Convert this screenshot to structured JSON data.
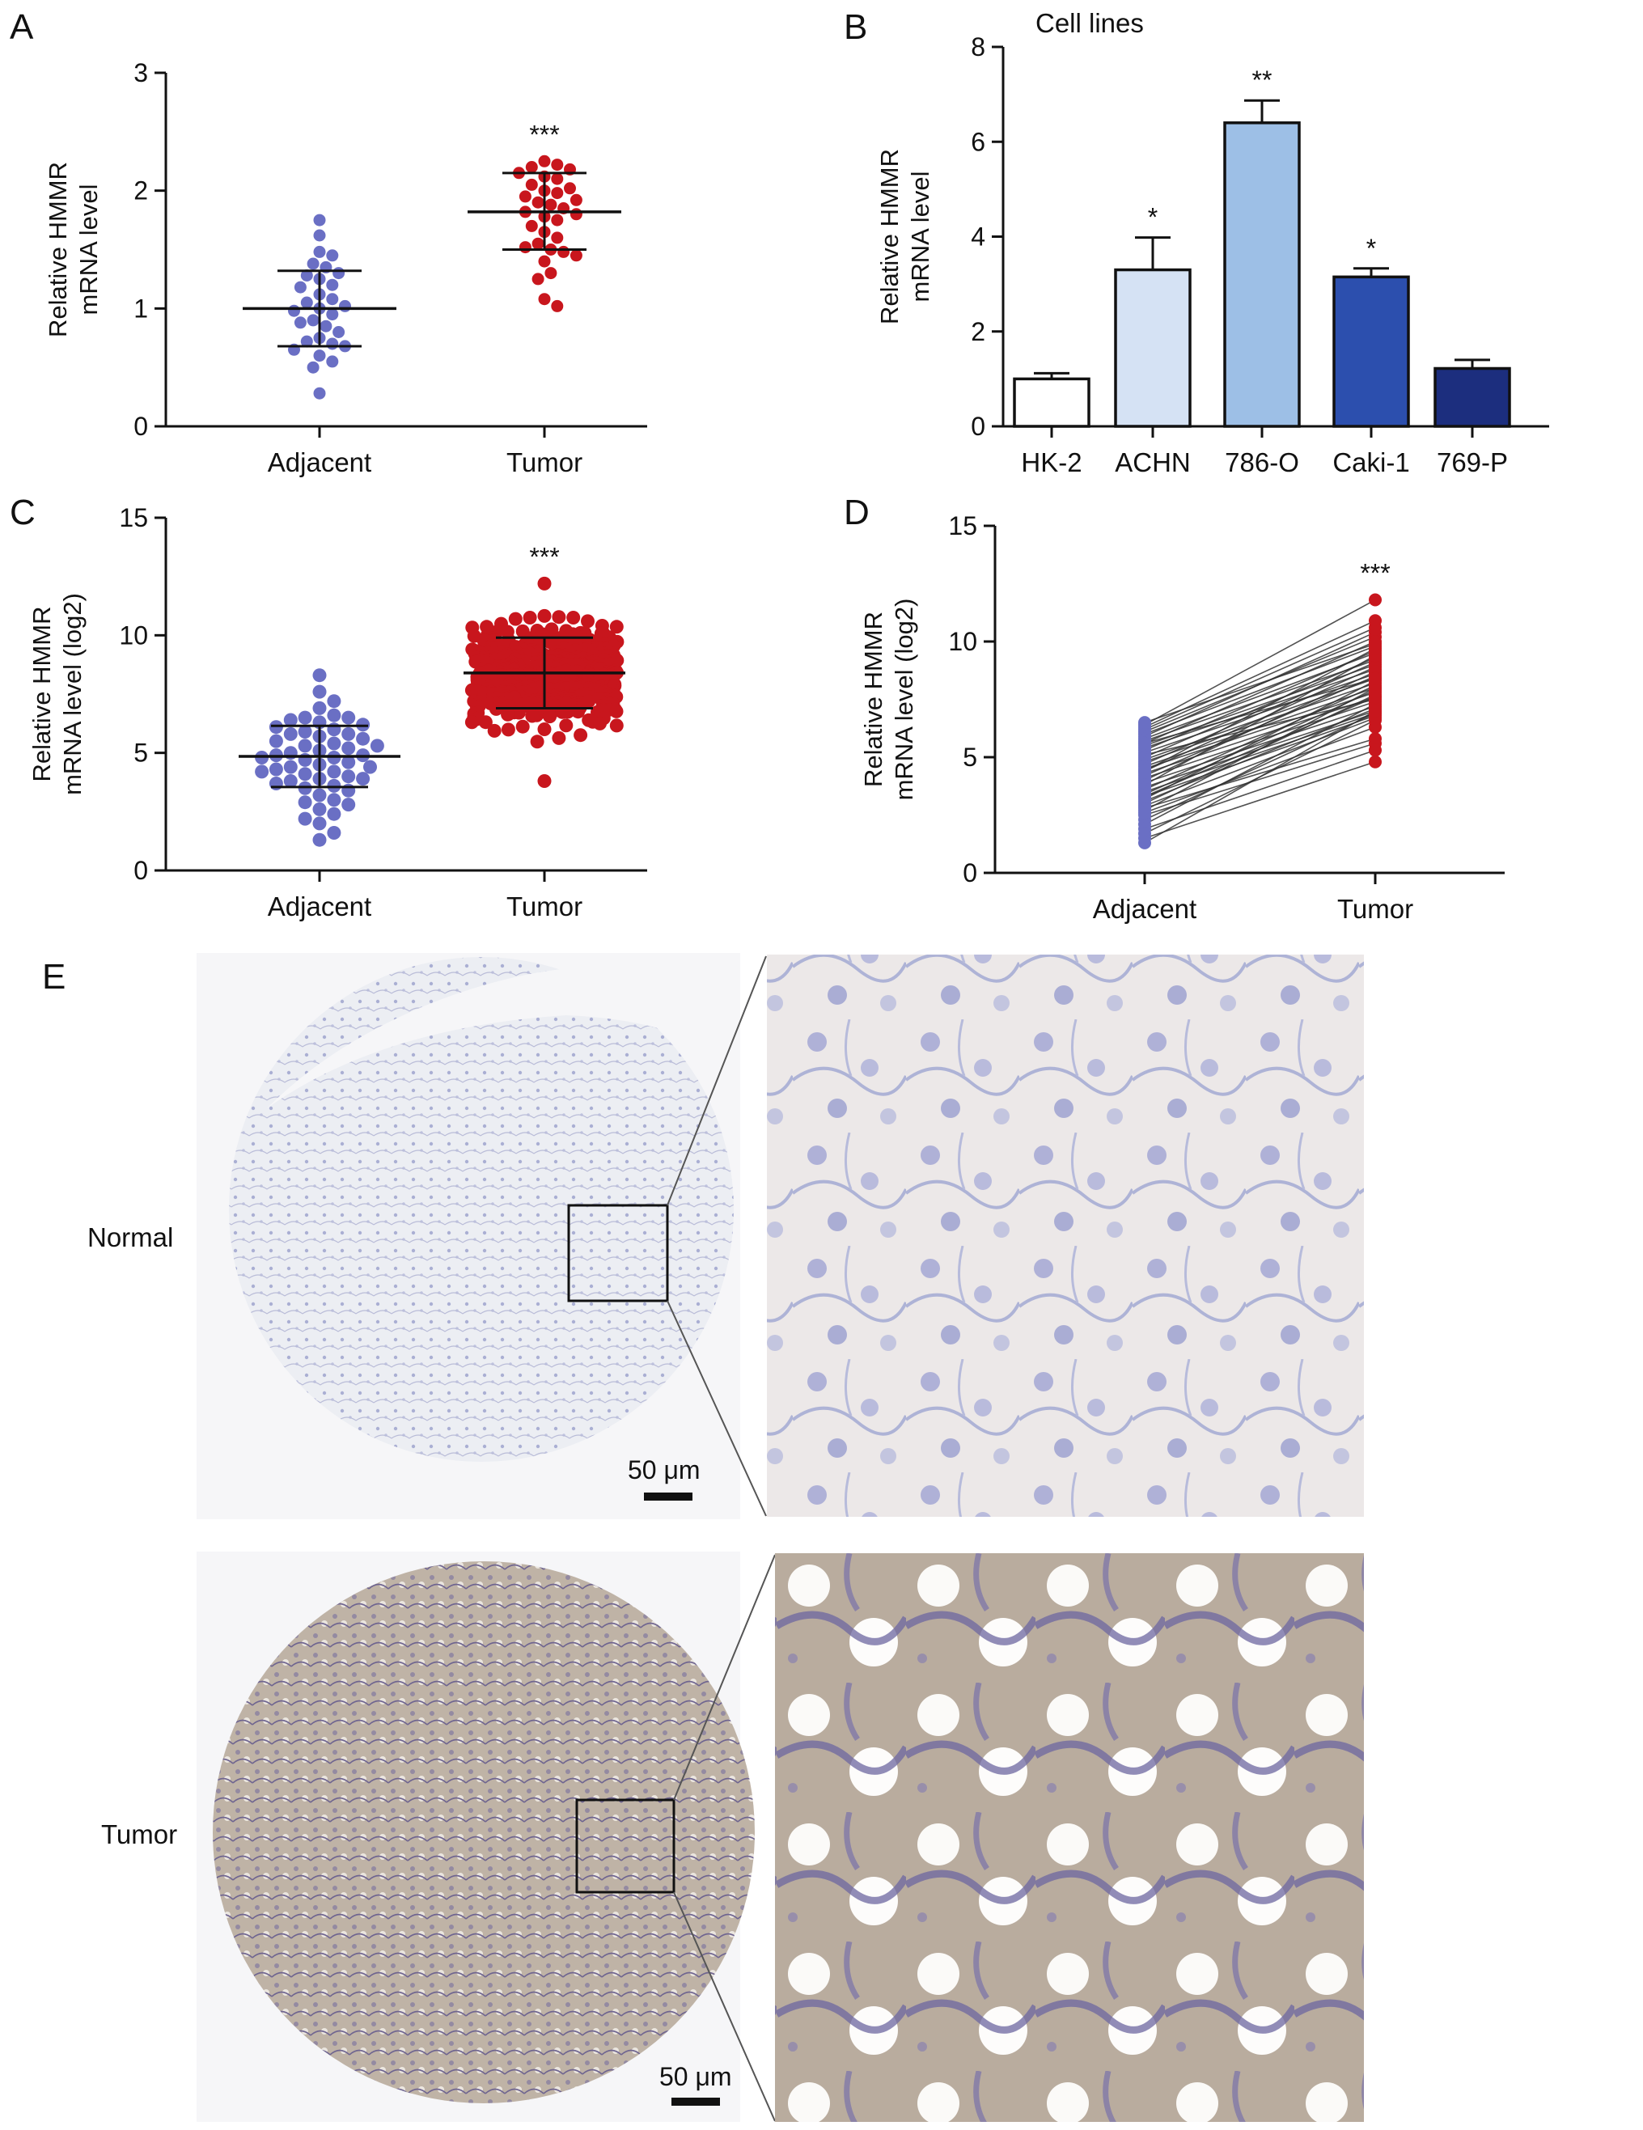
{
  "panels": {
    "A": "A",
    "B": "B",
    "C": "C",
    "D": "D",
    "E": "E"
  },
  "colors": {
    "adjacent": "#6a6fc4",
    "tumor": "#c8161d",
    "bars": [
      "#ffffff",
      "#d5e2f4",
      "#9dbfe6",
      "#2c4fae",
      "#1c2e7e"
    ]
  },
  "chart_data": [
    {
      "id": "A",
      "type": "scatter",
      "ylabel_lines": [
        "Relative HMMR",
        "mRNA level"
      ],
      "ylim": [
        0,
        3
      ],
      "yticks": [
        0,
        1,
        2,
        3
      ],
      "categories": [
        "Adjacent",
        "Tumor"
      ],
      "groups": [
        {
          "category": "Adjacent",
          "mean": 1.0,
          "sd_low": 0.68,
          "sd_high": 1.32,
          "points": [
            1.75,
            1.62,
            1.48,
            1.45,
            1.38,
            1.35,
            1.3,
            1.28,
            1.25,
            1.2,
            1.18,
            1.12,
            1.08,
            1.05,
            1.02,
            1.0,
            0.98,
            0.95,
            0.9,
            0.88,
            0.85,
            0.8,
            0.75,
            0.72,
            0.7,
            0.68,
            0.65,
            0.6,
            0.55,
            0.5,
            0.28
          ]
        },
        {
          "category": "Tumor",
          "mean": 1.82,
          "sd_low": 1.5,
          "sd_high": 2.15,
          "significance": "***",
          "points": [
            2.25,
            2.22,
            2.2,
            2.18,
            2.15,
            2.12,
            2.1,
            2.05,
            2.02,
            2.0,
            1.98,
            1.95,
            1.92,
            1.9,
            1.88,
            1.85,
            1.82,
            1.8,
            1.78,
            1.75,
            1.7,
            1.65,
            1.6,
            1.55,
            1.52,
            1.5,
            1.48,
            1.45,
            1.4,
            1.3,
            1.25,
            1.08,
            1.02
          ]
        }
      ]
    },
    {
      "id": "B",
      "type": "bar",
      "title": "Cell lines",
      "ylabel_lines": [
        "Relative HMMR",
        "mRNA level"
      ],
      "ylim": [
        0,
        8
      ],
      "yticks": [
        0,
        2,
        4,
        6,
        8
      ],
      "categories": [
        "HK-2",
        "ACHN",
        "786-O",
        "Caki-1",
        "769-P"
      ],
      "values": [
        1.0,
        3.3,
        6.4,
        3.15,
        1.22
      ],
      "errors": [
        0.12,
        0.68,
        0.47,
        0.18,
        0.18
      ],
      "significance": [
        "",
        "*",
        "**",
        "*",
        ""
      ]
    },
    {
      "id": "C",
      "type": "scatter",
      "ylabel_lines": [
        "Relative HMMR",
        "mRNA level (log2)"
      ],
      "ylim": [
        0,
        15
      ],
      "yticks": [
        0,
        5,
        10,
        15
      ],
      "categories": [
        "Adjacent",
        "Tumor"
      ],
      "groups": [
        {
          "category": "Adjacent",
          "mean": 4.85,
          "sd_low": 3.55,
          "sd_high": 6.15,
          "points": [
            8.3,
            7.6,
            7.2,
            6.9,
            6.6,
            6.5,
            6.4,
            6.3,
            6.2,
            6.1,
            6.0,
            5.9,
            5.8,
            5.7,
            5.6,
            5.5,
            5.4,
            5.3,
            5.2,
            5.1,
            5.0,
            4.9,
            4.8,
            4.8,
            4.7,
            4.6,
            4.5,
            4.4,
            4.3,
            4.2,
            4.1,
            4.0,
            3.9,
            3.8,
            3.7,
            3.6,
            3.5,
            3.4,
            3.2,
            3.0,
            2.8,
            2.6,
            2.4,
            2.2,
            2.0,
            1.6,
            1.3,
            5.3,
            4.9,
            4.4,
            5.8,
            3.9,
            6.5,
            2.9,
            4.2
          ]
        },
        {
          "category": "Tumor",
          "mean": 8.4,
          "sd_low": 6.9,
          "sd_high": 9.9,
          "significance": "***",
          "range": [
            3.8,
            12.2
          ],
          "count": 520
        }
      ]
    },
    {
      "id": "D",
      "type": "line",
      "ylabel_lines": [
        "Relative HMMR",
        "mRNA level (log2)"
      ],
      "ylim": [
        0,
        15
      ],
      "yticks": [
        0,
        5,
        10,
        15
      ],
      "categories": [
        "Adjacent",
        "Tumor"
      ],
      "significance": "***",
      "pairs": [
        [
          6.4,
          11.8
        ],
        [
          6.3,
          10.9
        ],
        [
          6.2,
          10.6
        ],
        [
          6.1,
          10.2
        ],
        [
          6.0,
          9.8
        ],
        [
          5.9,
          10.4
        ],
        [
          5.8,
          9.5
        ],
        [
          5.7,
          9.2
        ],
        [
          5.6,
          10.0
        ],
        [
          5.5,
          9.0
        ],
        [
          5.4,
          8.8
        ],
        [
          5.3,
          9.6
        ],
        [
          5.2,
          8.6
        ],
        [
          5.1,
          7.5
        ],
        [
          5.0,
          9.3
        ],
        [
          4.9,
          8.4
        ],
        [
          4.8,
          8.2
        ],
        [
          4.7,
          9.1
        ],
        [
          4.6,
          8.0
        ],
        [
          4.5,
          7.8
        ],
        [
          4.4,
          8.9
        ],
        [
          4.3,
          7.6
        ],
        [
          4.2,
          8.5
        ],
        [
          4.1,
          7.4
        ],
        [
          4.0,
          8.7
        ],
        [
          3.9,
          7.2
        ],
        [
          3.8,
          9.4
        ],
        [
          3.7,
          7.0
        ],
        [
          3.6,
          8.1
        ],
        [
          3.5,
          6.9
        ],
        [
          3.4,
          7.9
        ],
        [
          3.3,
          6.8
        ],
        [
          3.2,
          8.3
        ],
        [
          3.1,
          7.1
        ],
        [
          3.0,
          7.7
        ],
        [
          2.9,
          6.7
        ],
        [
          2.8,
          5.8
        ],
        [
          2.7,
          8.0
        ],
        [
          2.5,
          5.6
        ],
        [
          2.3,
          6.9
        ],
        [
          2.1,
          7.3
        ],
        [
          1.9,
          5.3
        ],
        [
          1.7,
          6.6
        ],
        [
          1.5,
          4.8
        ],
        [
          1.3,
          7.0
        ],
        [
          5.6,
          8.4
        ],
        [
          4.4,
          9.7
        ],
        [
          3.3,
          7.6
        ],
        [
          2.6,
          6.3
        ],
        [
          6.5,
          9.9
        ]
      ]
    }
  ],
  "panel_e": {
    "normal_label": "Normal",
    "tumor_label": "Tumor",
    "scale_normal": "50 μm",
    "scale_tumor": "50 μm"
  }
}
